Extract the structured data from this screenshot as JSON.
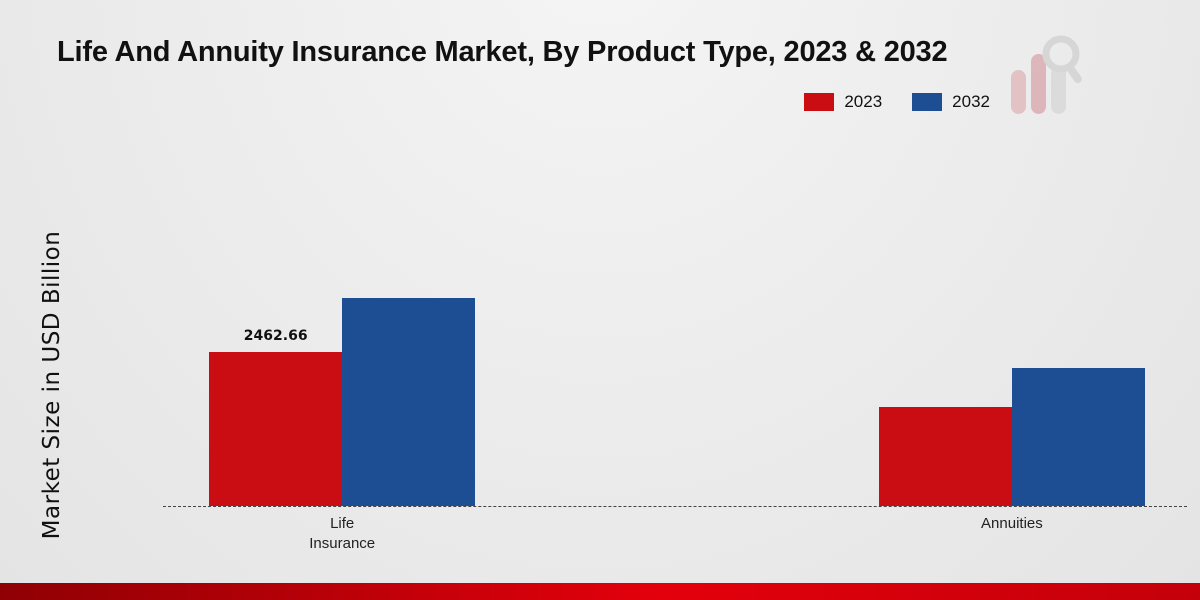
{
  "title": "Life And Annuity Insurance Market, By Product Type, 2023 & 2032",
  "ylabel": "Market Size in USD Billion",
  "legend": [
    {
      "label": "2023",
      "color": "#c90d12"
    },
    {
      "label": "2032",
      "color": "#1d4e94"
    }
  ],
  "chart_data": {
    "type": "bar",
    "title": "Life And Annuity Insurance Market, By Product Type, 2023 & 2032",
    "categories": [
      "Life Insurance",
      "Annuities"
    ],
    "series": [
      {
        "name": "2023",
        "color": "#c90d12",
        "values": [
          2462.66,
          1590
        ],
        "labels": [
          "2462.66",
          ""
        ]
      },
      {
        "name": "2032",
        "color": "#1d4e94",
        "values": [
          3335,
          2210
        ],
        "labels": [
          "",
          ""
        ]
      }
    ],
    "xlabel": "",
    "ylabel": "Market Size in USD Billion",
    "ylim": [
      0,
      4900
    ],
    "grid": false,
    "legend_position": "top-right",
    "baseline_style": "dashed",
    "visible_value_labels": [
      "2462.66"
    ]
  },
  "colors": {
    "bar_2023": "#c90d12",
    "bar_2032": "#1d4e94",
    "footer_left": "#8f0004",
    "footer_right": "#c4000a",
    "background": "#ededed"
  }
}
